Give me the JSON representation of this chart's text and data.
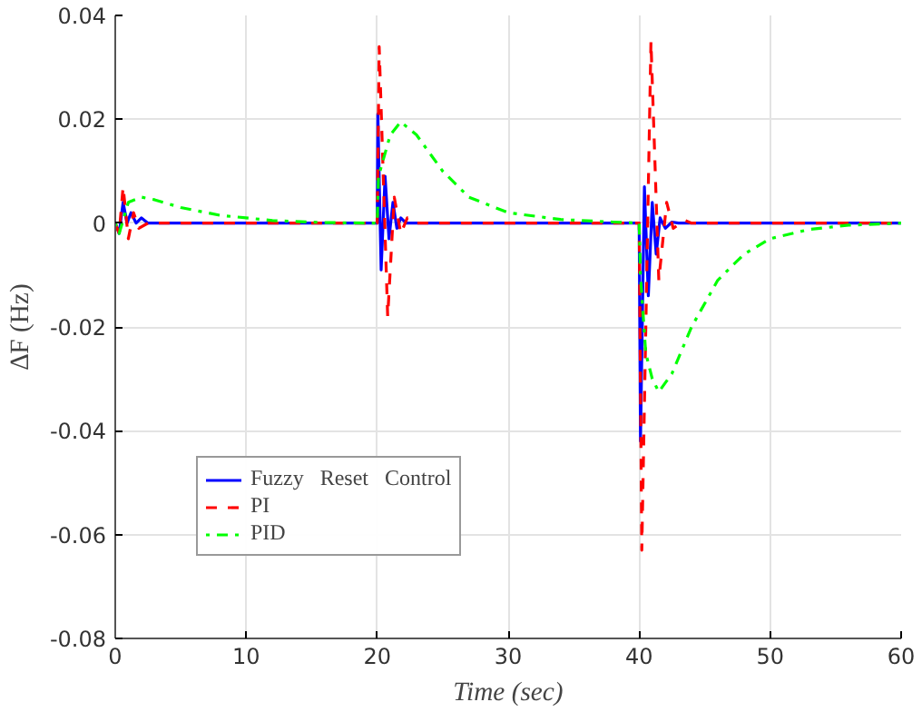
{
  "chart_data": {
    "type": "line",
    "xlabel": "Time (sec)",
    "ylabel": "∆F (Hz)",
    "xlim": [
      0,
      60
    ],
    "ylim": [
      -0.08,
      0.04
    ],
    "xticks": [
      0,
      10,
      20,
      30,
      40,
      50,
      60
    ],
    "yticks": [
      -0.08,
      -0.06,
      -0.04,
      -0.02,
      0,
      0.02,
      0.04
    ],
    "grid": true,
    "legend": "bottom left",
    "marker": "none",
    "series": [
      {
        "name": "Fuzzy   Reset   Control",
        "color": "#0000ff",
        "line_style": "solid",
        "x": [
          0,
          0.3,
          0.6,
          0.9,
          1.2,
          1.6,
          2,
          2.5,
          20,
          20.05,
          20.3,
          20.6,
          20.9,
          21.2,
          21.5,
          21.8,
          22.2,
          40,
          40.1,
          40.4,
          40.7,
          41,
          41.3,
          41.6,
          42,
          42.5,
          43,
          60
        ],
        "values": [
          0,
          -0.002,
          0.004,
          0,
          0.002,
          0,
          0.001,
          0,
          0,
          0.021,
          -0.009,
          0.009,
          -0.003,
          0.004,
          -0.001,
          0.001,
          0,
          0,
          -0.042,
          0.007,
          -0.014,
          0.004,
          -0.006,
          0.001,
          -0.001,
          0.0002,
          0,
          0
        ]
      },
      {
        "name": "PI",
        "color": "#ff0000",
        "line_style": "dashed",
        "x": [
          0,
          0.3,
          0.6,
          1.0,
          1.4,
          1.8,
          2.5,
          20,
          20.15,
          20.8,
          21.3,
          21.8,
          22.3,
          23,
          40,
          40.2,
          40.9,
          41.5,
          42.1,
          42.6,
          43.5,
          44,
          60
        ],
        "values": [
          0,
          -0.002,
          0.007,
          -0.003,
          0.002,
          -0.001,
          0,
          0,
          0.034,
          -0.018,
          0.005,
          -0.002,
          0.001,
          0,
          0,
          -0.063,
          0.035,
          -0.011,
          0.004,
          -0.001,
          0.0005,
          0,
          0
        ]
      },
      {
        "name": "PID",
        "color": "#00ff00",
        "line_style": "dotted",
        "x": [
          0,
          0.3,
          1,
          2,
          3,
          5,
          8,
          12,
          16,
          20,
          20.1,
          21,
          21.8,
          23,
          25,
          27,
          30,
          34,
          38,
          40,
          40.1,
          40.5,
          41,
          41.5,
          42.5,
          44,
          46,
          48,
          50,
          53,
          56,
          60
        ],
        "values": [
          0,
          -0.002,
          0.004,
          0.005,
          0.0045,
          0.003,
          0.0015,
          0.0005,
          0.0001,
          0,
          0.009,
          0.017,
          0.0195,
          0.017,
          0.01,
          0.005,
          0.002,
          0.0007,
          0.0002,
          0,
          -0.01,
          -0.025,
          -0.03,
          -0.0325,
          -0.029,
          -0.02,
          -0.011,
          -0.006,
          -0.003,
          -0.0012,
          -0.0004,
          0
        ]
      }
    ]
  }
}
